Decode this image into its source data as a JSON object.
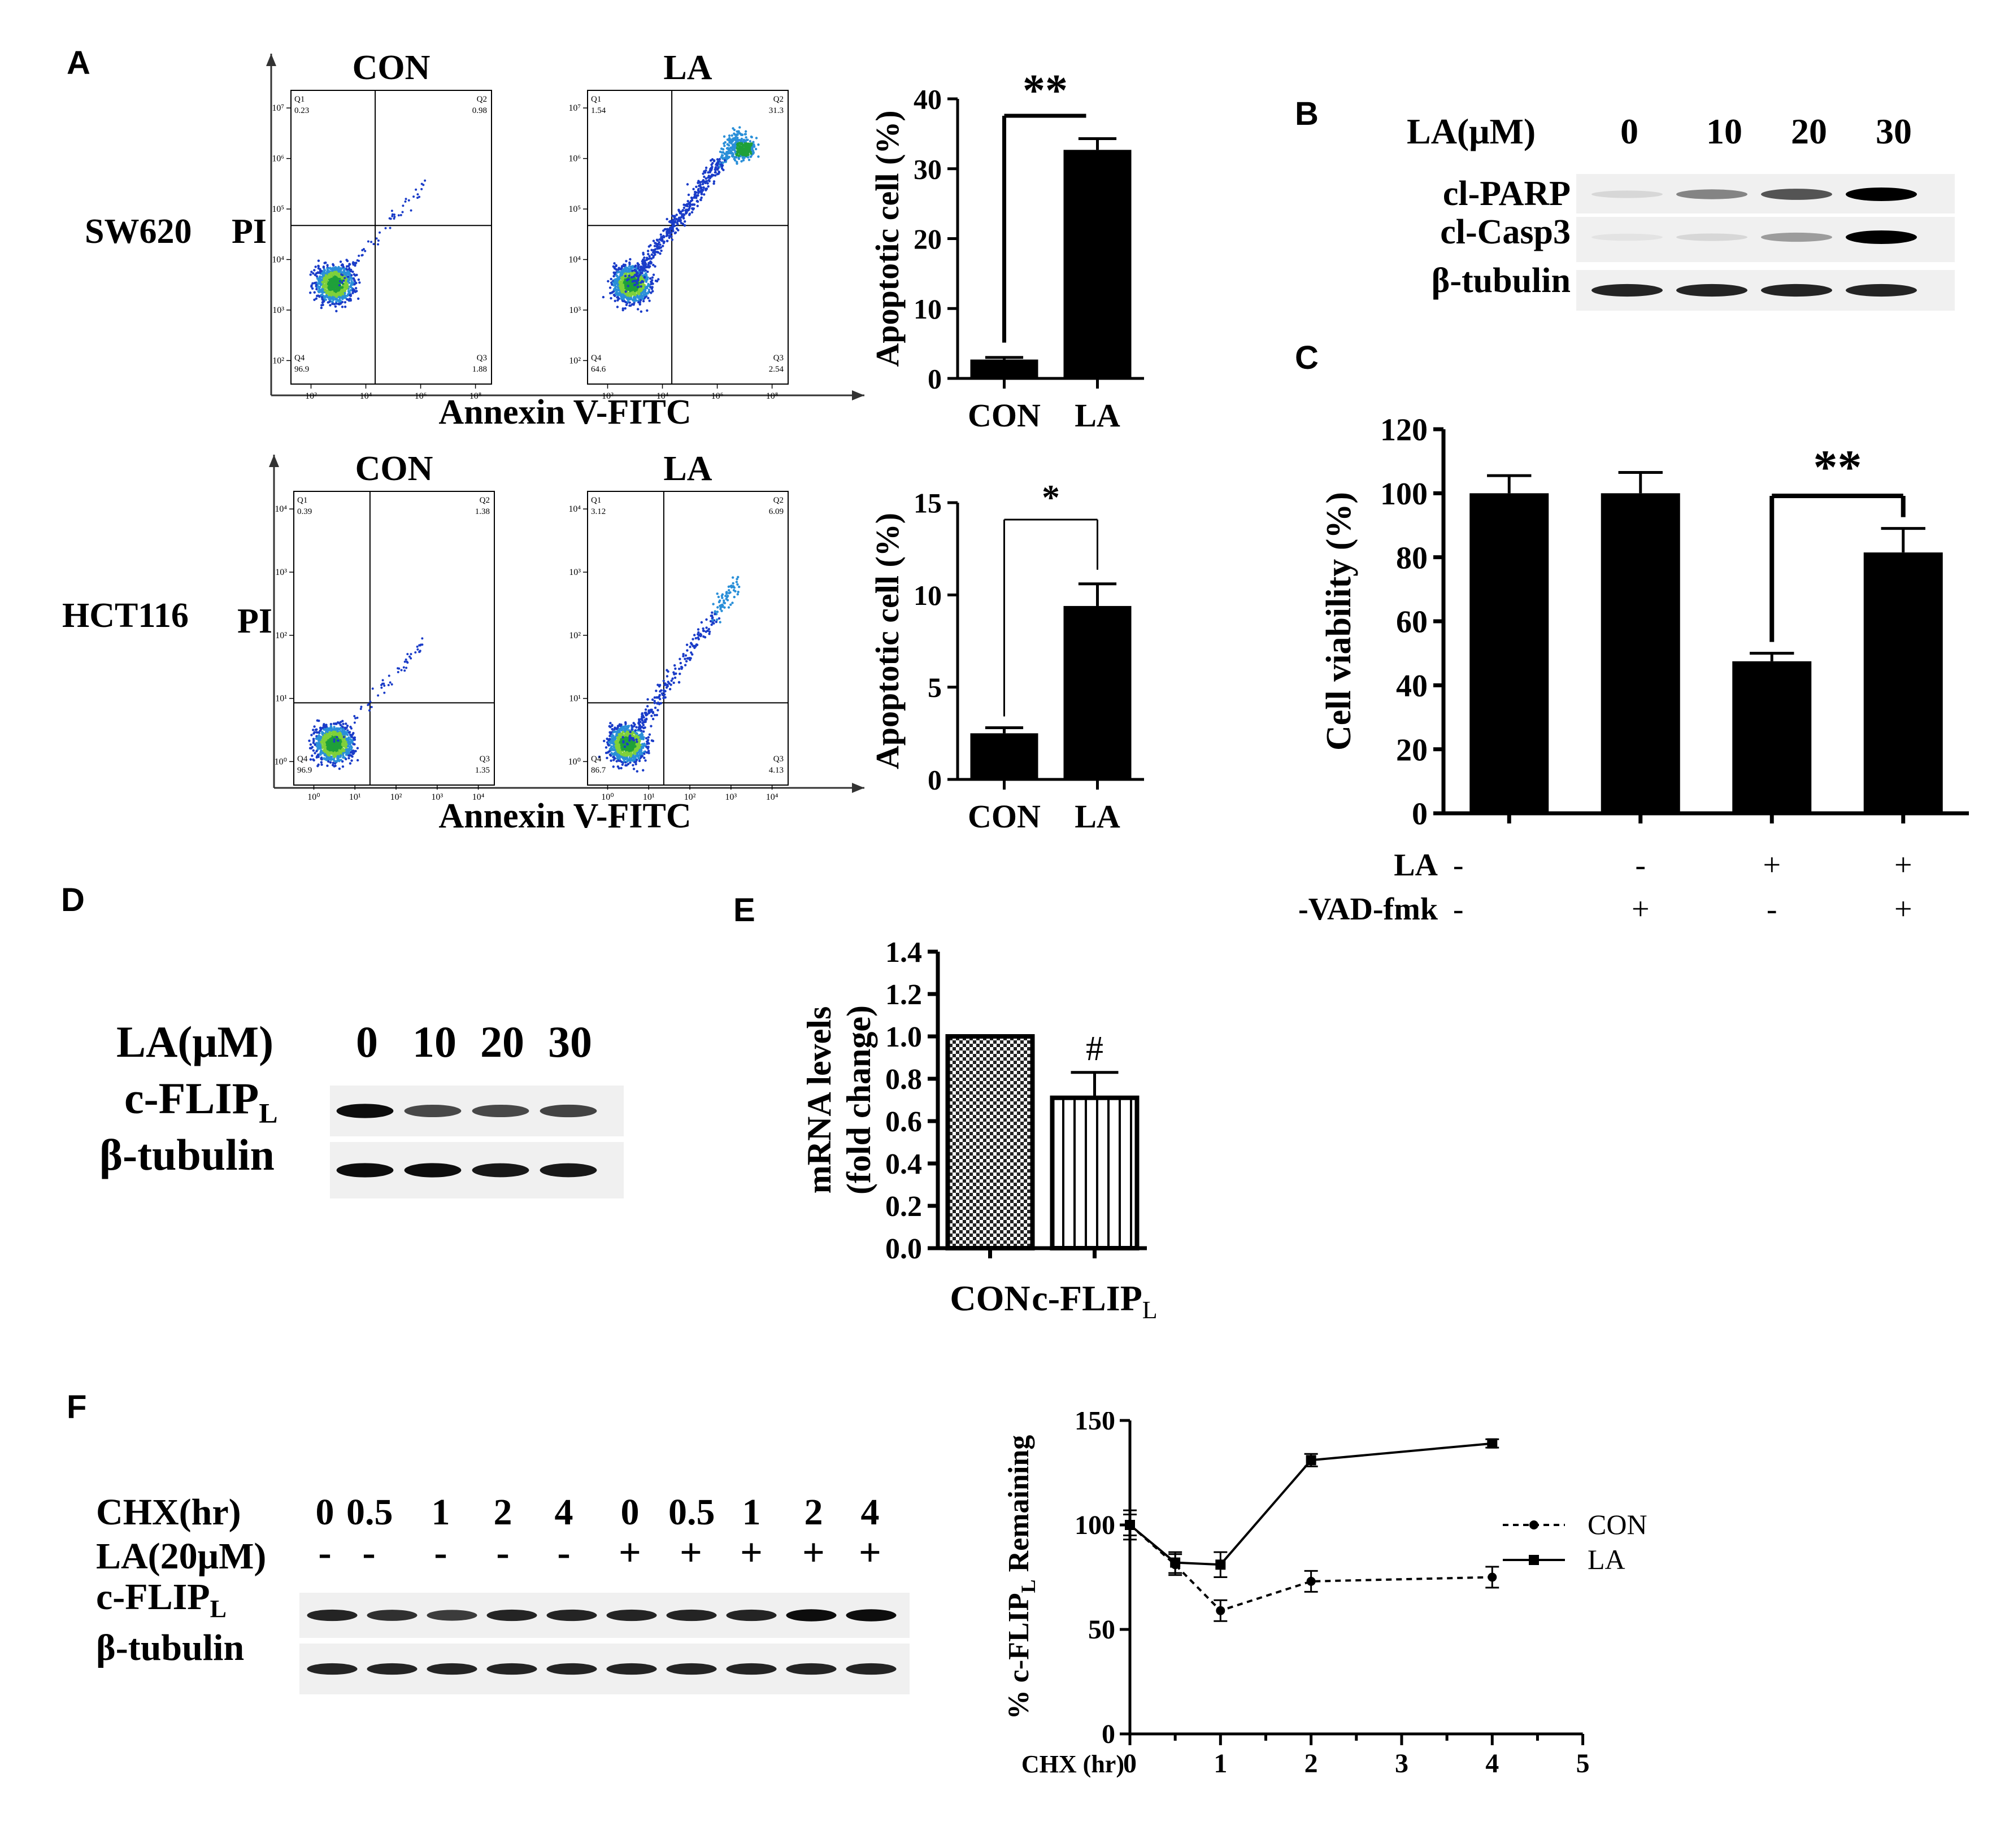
{
  "panels": {
    "a": "A",
    "b": "B",
    "c": "C",
    "d": "D",
    "e": "E",
    "f": "F"
  },
  "panel_a": {
    "rows": [
      {
        "cell_line": "SW620",
        "y_axis": "PI",
        "x_axis": "Annexin V-FITC",
        "plots": [
          {
            "title": "CON",
            "q1": "0.23",
            "q2": "0.98",
            "q3": "1.88",
            "q4": "96.9"
          },
          {
            "title": "LA",
            "q1": "1.54",
            "q2": "31.3",
            "q3": "2.54",
            "q4": "64.6"
          }
        ],
        "xticks": [
          "10²",
          "10⁴",
          "10⁶",
          "10⁸"
        ],
        "yticks": [
          "10²",
          "10³",
          "10⁴",
          "10⁵",
          "10⁶",
          "10⁷"
        ]
      },
      {
        "cell_line": "HCT116",
        "y_axis": "PI",
        "x_axis": "Annexin V-FITC",
        "plots": [
          {
            "title": "CON",
            "q1": "0.39",
            "q2": "1.38",
            "q3": "1.35",
            "q4": "96.9"
          },
          {
            "title": "LA",
            "q1": "3.12",
            "q2": "6.09",
            "q3": "4.13",
            "q4": "86.7"
          }
        ],
        "xticks": [
          "10⁰",
          "10¹",
          "10²",
          "10³",
          "10⁴"
        ],
        "yticks": [
          "10⁰",
          "10¹",
          "10²",
          "10³",
          "10⁴"
        ]
      }
    ],
    "quadrant_names": [
      "Q1",
      "Q2",
      "Q3",
      "Q4"
    ]
  },
  "panel_b": {
    "header": "LA(μM)",
    "doses": [
      "0",
      "10",
      "20",
      "30"
    ],
    "rows": [
      "cl-PARP",
      "cl-Casp3",
      "β-tubulin"
    ]
  },
  "panel_d": {
    "header": "LA(μM)",
    "doses": [
      "0",
      "10",
      "20",
      "30"
    ],
    "row1_main": "c-FLIP",
    "row1_sub": "L",
    "row2": "β-tubulin"
  },
  "panel_f_blot": {
    "chx_label": "CHX(hr)",
    "chx": [
      "0",
      "0.5",
      "1",
      "2",
      "4",
      "0",
      "0.5",
      "1",
      "2",
      "4"
    ],
    "la_label": "LA(20μM)",
    "la": [
      "-",
      "-",
      "-",
      "-",
      "-",
      "+",
      "+",
      "+",
      "+",
      "+"
    ],
    "row1_main": "c-FLIP",
    "row1_sub": "L",
    "row2": "β-tubulin"
  },
  "chart_data": [
    {
      "type": "bar",
      "panel": "A-SW620",
      "categories": [
        "CON",
        "LA"
      ],
      "values": [
        2.7,
        32.7
      ],
      "errors": [
        0.3,
        1.6
      ],
      "ylabel": "Apoptotic cell (%)",
      "ylim": [
        0,
        40
      ],
      "yticks": [
        "0",
        "10",
        "20",
        "30",
        "40"
      ],
      "significance": "**"
    },
    {
      "type": "bar",
      "panel": "A-HCT116",
      "categories": [
        "CON",
        "LA"
      ],
      "values": [
        2.5,
        9.4
      ],
      "errors": [
        0.3,
        1.2
      ],
      "ylabel": "Apoptotic cell (%)",
      "ylim": [
        0,
        15
      ],
      "yticks": [
        "0",
        "5",
        "10",
        "15"
      ],
      "significance": "*"
    },
    {
      "type": "bar",
      "panel": "C",
      "categories": [
        "1",
        "2",
        "3",
        "4"
      ],
      "values": [
        100,
        100,
        47.5,
        81.5
      ],
      "errors": [
        5.5,
        6.5,
        2.5,
        7.5
      ],
      "ylabel": "Cell viability (%)",
      "ylim": [
        0,
        120
      ],
      "yticks": [
        "0",
        "20",
        "40",
        "60",
        "80",
        "100",
        "120"
      ],
      "significance": "**",
      "conditions": [
        {
          "name": "LA",
          "values": [
            "-",
            "-",
            "+",
            "+"
          ]
        },
        {
          "name": "Z-VAD-fmk",
          "values": [
            "-",
            "+",
            "-",
            "+"
          ]
        }
      ]
    },
    {
      "type": "bar",
      "panel": "E",
      "categories": [
        "CON",
        "c-FLIP"
      ],
      "category_sub": [
        "",
        "L"
      ],
      "values": [
        1.0,
        0.71
      ],
      "errors": [
        0,
        0.12
      ],
      "ylabel_line1": "mRNA levels",
      "ylabel_line2": "(fold change)",
      "ylim": [
        0,
        1.4
      ],
      "yticks": [
        "0.0",
        "0.2",
        "0.4",
        "0.6",
        "0.8",
        "1.0",
        "1.2",
        "1.4"
      ],
      "significance": "#"
    },
    {
      "type": "line",
      "panel": "F",
      "xlabel": "CHX (hr)",
      "ylabel_main": "% c-FLIP",
      "ylabel_sub": "L",
      "ylabel_end": " Remaining",
      "xlim": [
        0,
        5
      ],
      "ylim": [
        0,
        150
      ],
      "xticks": [
        "0",
        "1",
        "2",
        "3",
        "4",
        "5"
      ],
      "yticks": [
        "0",
        "50",
        "100",
        "150"
      ],
      "series": [
        {
          "name": "CON",
          "x": [
            0,
            0.5,
            1,
            2,
            4
          ],
          "y": [
            100,
            81,
            59,
            73,
            75
          ],
          "err": [
            7,
            5,
            5,
            5,
            5
          ]
        },
        {
          "name": "LA",
          "x": [
            0,
            0.5,
            1,
            2,
            4
          ],
          "y": [
            100,
            82,
            81,
            131,
            139
          ],
          "err": [
            5,
            5,
            6,
            3,
            2
          ]
        }
      ]
    }
  ]
}
